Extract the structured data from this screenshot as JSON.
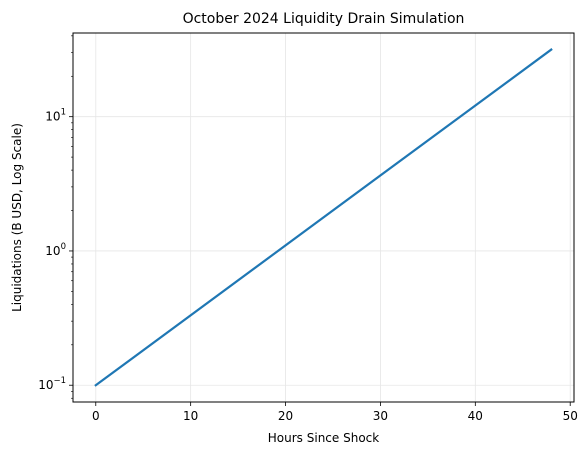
{
  "chart_data": {
    "type": "line",
    "title": "October 2024 Liquidity Drain Simulation",
    "xlabel": "Hours Since Shock",
    "ylabel": "Liquidations (B USD, Log Scale)",
    "xlim": [
      -2.4,
      50.4
    ],
    "ylim": [
      0.075,
      42
    ],
    "y_scale": "log",
    "grid": true,
    "x_ticks": [
      0,
      10,
      20,
      30,
      40,
      50
    ],
    "y_ticks": [
      {
        "value": 0.1,
        "base": "10",
        "exp": "−1"
      },
      {
        "value": 1,
        "base": "10",
        "exp": "0"
      },
      {
        "value": 10,
        "base": "10",
        "exp": "1"
      }
    ],
    "series": [
      {
        "x": [
          0,
          48
        ],
        "y": [
          0.1,
          31.6
        ],
        "color": "#1f77b4"
      }
    ]
  }
}
